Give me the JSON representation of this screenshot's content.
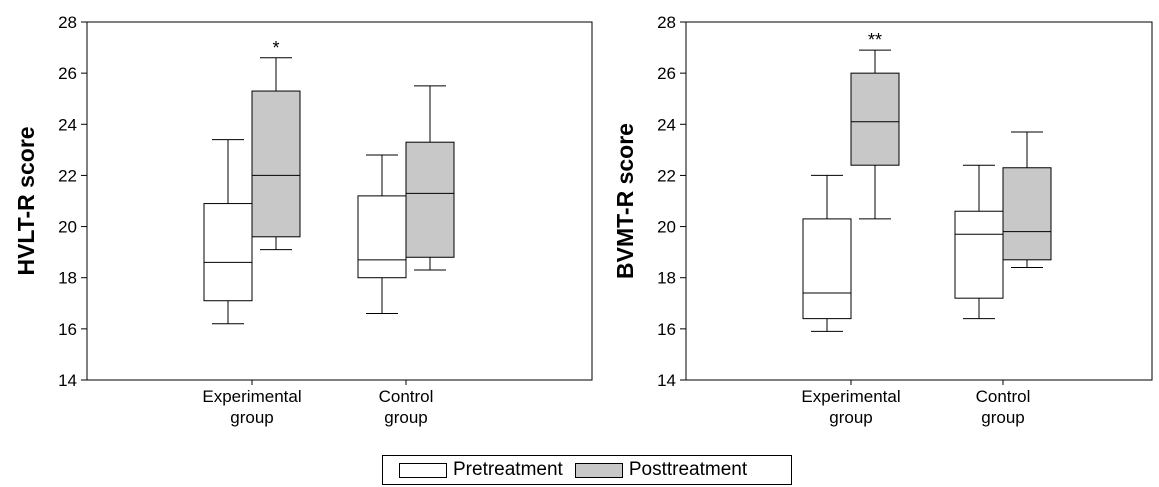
{
  "colors": {
    "pretreatment": "#ffffff",
    "posttreatment": "#c8c8c8",
    "stroke": "#000000"
  },
  "legend": {
    "pretreatment_label": "Pretreatment",
    "posttreatment_label": "Posttreatment"
  },
  "chart_data": [
    {
      "type": "box",
      "ylabel": "HVLT-R score",
      "ylim": [
        14,
        28
      ],
      "yticks": [
        "14",
        "16",
        "18",
        "20",
        "22",
        "24",
        "26",
        "28"
      ],
      "categories": [
        [
          "Experimental",
          "group"
        ],
        [
          "Control",
          "group"
        ]
      ],
      "series": [
        {
          "name": "Pretreatment",
          "boxes": [
            {
              "min": 16.2,
              "q1": 17.1,
              "median": 18.6,
              "q3": 20.9,
              "max": 23.4
            },
            {
              "min": 16.6,
              "q1": 18.0,
              "median": 18.7,
              "q3": 21.2,
              "max": 22.8
            }
          ]
        },
        {
          "name": "Posttreatment",
          "boxes": [
            {
              "min": 19.1,
              "q1": 19.6,
              "median": 22.0,
              "q3": 25.3,
              "max": 26.6
            },
            {
              "min": 18.3,
              "q1": 18.8,
              "median": 21.3,
              "q3": 23.3,
              "max": 25.5
            }
          ]
        }
      ],
      "annotations": [
        {
          "text": "*",
          "category_index": 0,
          "series": "Posttreatment"
        }
      ]
    },
    {
      "type": "box",
      "ylabel": "BVMT-R score",
      "ylim": [
        14,
        28
      ],
      "yticks": [
        "14",
        "16",
        "18",
        "20",
        "22",
        "24",
        "26",
        "28"
      ],
      "categories": [
        [
          "Experimental",
          "group"
        ],
        [
          "Control",
          "group"
        ]
      ],
      "series": [
        {
          "name": "Pretreatment",
          "boxes": [
            {
              "min": 15.9,
              "q1": 16.4,
              "median": 17.4,
              "q3": 20.3,
              "max": 22.0
            },
            {
              "min": 16.4,
              "q1": 17.2,
              "median": 19.7,
              "q3": 20.6,
              "max": 22.4
            }
          ]
        },
        {
          "name": "Posttreatment",
          "boxes": [
            {
              "min": 20.3,
              "q1": 22.4,
              "median": 24.1,
              "q3": 26.0,
              "max": 26.9
            },
            {
              "min": 18.4,
              "q1": 18.7,
              "median": 19.8,
              "q3": 22.3,
              "max": 23.7
            }
          ]
        }
      ],
      "annotations": [
        {
          "text": "**",
          "category_index": 0,
          "series": "Posttreatment"
        }
      ]
    }
  ]
}
